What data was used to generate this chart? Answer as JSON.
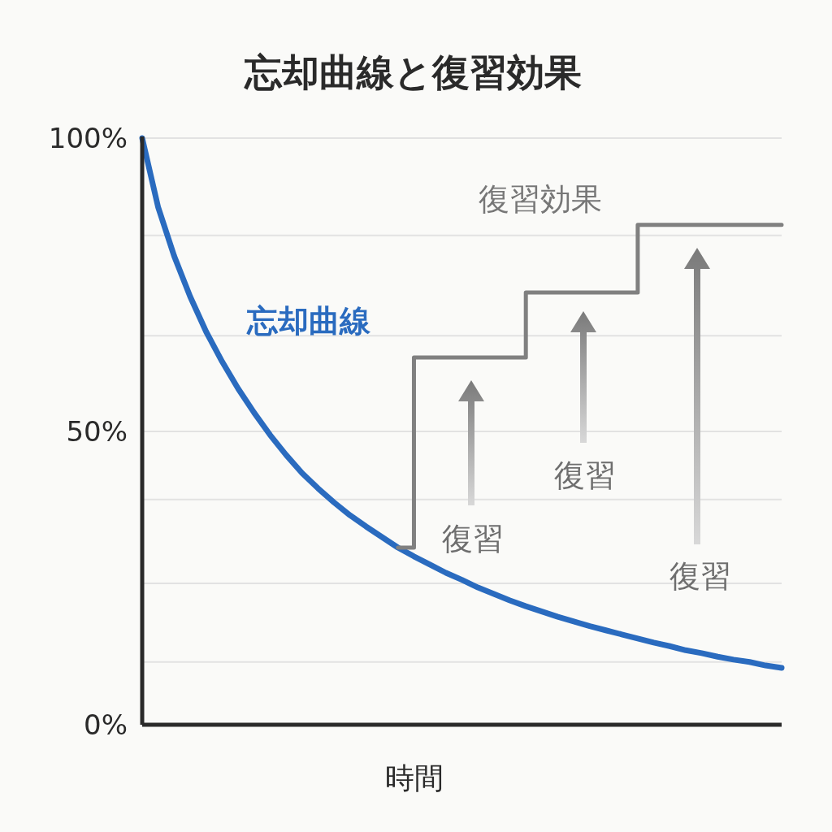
{
  "chart_data": {
    "type": "line",
    "title": "忘却曲線と復習効果",
    "xlabel": "時間",
    "categories": [
      null,
      null,
      null,
      null,
      null,
      null,
      null,
      null,
      null,
      null,
      null,
      null,
      null,
      null,
      null,
      null,
      null,
      null,
      null,
      null,
      null,
      null,
      null,
      null,
      null,
      null,
      null,
      null,
      null,
      null,
      null,
      null,
      null,
      null,
      null,
      null,
      null,
      null,
      null,
      null,
      null
    ],
    "series": [
      {
        "name": "忘却曲線",
        "color": "#2a6bbf",
        "values": [
          100,
          88.2,
          79.9,
          73,
          67,
          61.9,
          57.3,
          53.2,
          49.4,
          46,
          42.9,
          40.3,
          37.9,
          35.7,
          33.8,
          32,
          30.2,
          28.7,
          27.3,
          25.9,
          24.7,
          23.4,
          22.3,
          21.2,
          20.2,
          19.3,
          18.4,
          17.6,
          16.8,
          16.1,
          15.4,
          14.7,
          14,
          13.4,
          12.7,
          12.2,
          11.6,
          11.1,
          10.7,
          10.1,
          9.7
        ]
      },
      {
        "name": "復習効果",
        "color": "#808080",
        "type": "step",
        "values": [
          null,
          null,
          null,
          null,
          null,
          null,
          null,
          null,
          null,
          null,
          null,
          null,
          null,
          null,
          null,
          null,
          30.2,
          62.6,
          62.6,
          62.6,
          62.6,
          62.6,
          62.6,
          62.6,
          73.7,
          73.7,
          73.7,
          73.7,
          73.7,
          73.7,
          73.7,
          85.2,
          85.2,
          85.2,
          85.2,
          85.2,
          85.2,
          85.2,
          85.2,
          85.2,
          85.2
        ]
      }
    ],
    "annotations": [
      "復習",
      "復習",
      "復習"
    ],
    "ylim": [
      0,
      100
    ],
    "yticks": [
      {
        "value": 0,
        "label": "0%"
      },
      {
        "value": 10.7,
        "label": null
      },
      {
        "value": 24.1,
        "label": null
      },
      {
        "value": 38.4,
        "label": null
      },
      {
        "value": 50,
        "label": "50%"
      },
      {
        "value": 66.3,
        "label": null
      },
      {
        "value": 83.4,
        "label": null
      },
      {
        "value": 100,
        "label": "100%"
      }
    ],
    "grid": "y"
  }
}
